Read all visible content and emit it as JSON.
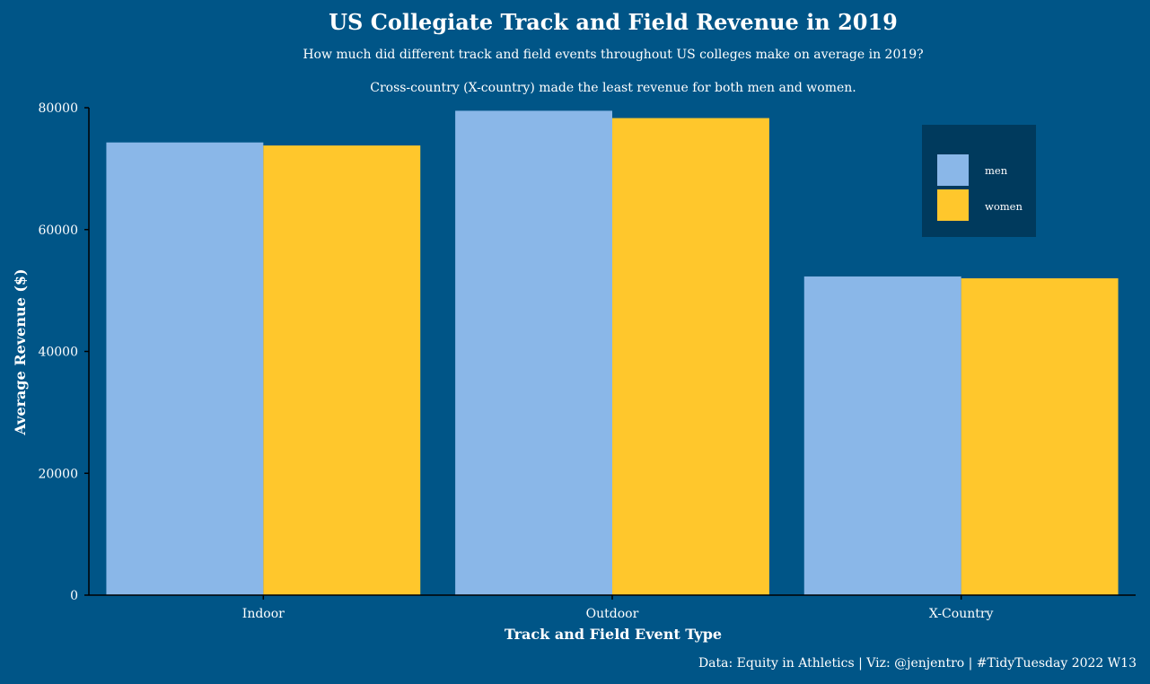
{
  "chart_data": {
    "type": "bar",
    "title": "US Collegiate Track and Field Revenue in 2019",
    "subtitle": "How much did different track and field events throughout US colleges make on average in 2019?",
    "subtitle2": "Cross-country (X-country) made the least revenue for both men and women.",
    "xlabel": "Track and Field Event Type",
    "ylabel": "Average Revenue ($)",
    "caption": "Data: Equity in Athletics | Viz: @jenjentro | #TidyTuesday 2022 W13",
    "categories": [
      "Indoor",
      "Outdoor",
      "X-Country"
    ],
    "series": [
      {
        "name": "men",
        "color": "#8ab7e8",
        "values": [
          74300,
          79500,
          52300
        ]
      },
      {
        "name": "women",
        "color": "#ffc72c",
        "values": [
          73800,
          78300,
          52000
        ]
      }
    ],
    "ylim": [
      0,
      80000
    ],
    "yticks": [
      "0",
      "20000",
      "40000",
      "60000",
      "80000"
    ],
    "legend_position": "top-right",
    "grid": false,
    "colors": {
      "background": "#005587",
      "legend_background": "#003a5d",
      "axis_line": "#000000",
      "text": "#ffffff"
    }
  }
}
